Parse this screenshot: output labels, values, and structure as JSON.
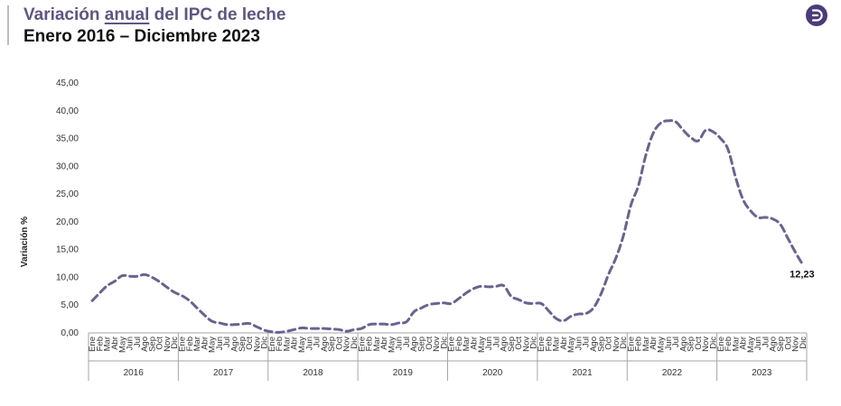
{
  "header": {
    "title_pre": "Variación ",
    "title_highlight": "anual",
    "title_post": " del IPC de leche",
    "subtitle": "Enero 2016 – Diciembre 2023",
    "logo_icon": "brand-logo-icon"
  },
  "colors": {
    "title": "#5f5580",
    "line": "#6b6290",
    "logo": "#4b3b7a"
  },
  "chart_data": {
    "type": "line",
    "title": "",
    "xlabel": "",
    "ylabel": "Variación %",
    "ylim": [
      0,
      45
    ],
    "yticks": [
      "0,00",
      "5,00",
      "10,00",
      "15,00",
      "20,00",
      "25,00",
      "30,00",
      "35,00",
      "40,00",
      "45,00"
    ],
    "months": [
      "Ene",
      "Feb",
      "Mar",
      "Abr",
      "May",
      "Jun",
      "Jul",
      "Ago",
      "Sep",
      "Oct",
      "Nov",
      "Dic"
    ],
    "years": [
      "2016",
      "2017",
      "2018",
      "2019",
      "2020",
      "2021",
      "2022",
      "2023"
    ],
    "grid": false,
    "line_style": "dashed",
    "series": [
      {
        "values": [
          5.8,
          7.2,
          8.5,
          9.3,
          10.3,
          10.2,
          10.2,
          10.5,
          10.0,
          9.2,
          8.2,
          7.3,
          6.7,
          5.8,
          4.5,
          3.2,
          2.1,
          1.8,
          1.5,
          1.5,
          1.6,
          1.7,
          1.1,
          0.5,
          0.2,
          0.1,
          0.3,
          0.6,
          0.9,
          0.8,
          0.8,
          0.8,
          0.7,
          0.6,
          0.3,
          0.6,
          0.8,
          1.5,
          1.6,
          1.6,
          1.5,
          1.8,
          2.0,
          3.8,
          4.5,
          5.1,
          5.3,
          5.4,
          5.3,
          6.2,
          7.2,
          8.0,
          8.4,
          8.3,
          8.4,
          8.5,
          6.6,
          6.0,
          5.4,
          5.3,
          5.3,
          4.0,
          2.6,
          2.2,
          3.0,
          3.4,
          3.5,
          4.5,
          7.0,
          10.5,
          13.5,
          17.5,
          23.0,
          26.5,
          32.0,
          36.0,
          37.8,
          38.2,
          38.0,
          36.5,
          35.2,
          34.6,
          36.5,
          36.2,
          35.0,
          33.0,
          28.0,
          24.0,
          22.0,
          20.8,
          20.8,
          20.5,
          19.5,
          17.0,
          14.5,
          12.23
        ]
      }
    ],
    "annotations": [
      {
        "label": "12,23"
      }
    ]
  }
}
